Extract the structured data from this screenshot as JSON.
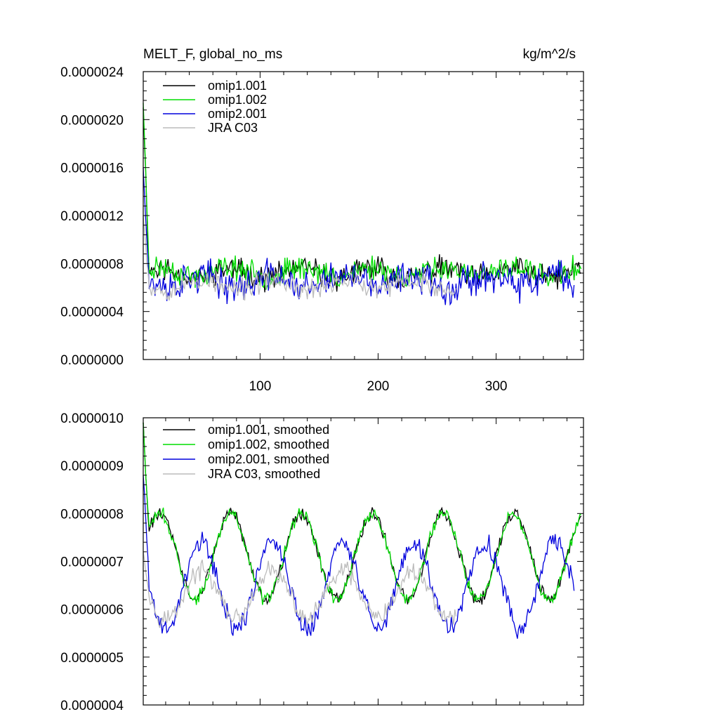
{
  "chart_data": [
    {
      "type": "line",
      "title": "MELT_F, global_no_ms",
      "units": "kg/m^2/s",
      "xlim": [
        1,
        374
      ],
      "ylim": [
        0.0,
        2.4e-06
      ],
      "xticks": [
        100,
        200,
        300
      ],
      "xtick_labels": [
        "100",
        "200",
        "300"
      ],
      "yticks": [
        0.0,
        4e-07,
        8e-07,
        1.2e-06,
        1.6e-06,
        2e-06,
        2.4e-06
      ],
      "ytick_labels": [
        "0.0000000",
        "0.0000004",
        "0.0000008",
        "0.0000012",
        "0.0000016",
        "0.0000020",
        "0.0000024"
      ],
      "legend_position": "top-left",
      "series": [
        {
          "name": "omip1.001",
          "color": "#000000",
          "n": 372,
          "mean": 7.2e-07,
          "noise": 9e-08,
          "seas": 4e-08,
          "seas_phase": 0.0,
          "spike": 2.1e-06,
          "seed": 11
        },
        {
          "name": "omip1.002",
          "color": "#00dd00",
          "n": 372,
          "mean": 7.3e-07,
          "noise": 9e-08,
          "seas": 4e-08,
          "seas_phase": 0.0,
          "spike": 2.14e-06,
          "seed": 23
        },
        {
          "name": "omip2.001",
          "color": "#0000dd",
          "n": 366,
          "mean": 6.5e-07,
          "noise": 1.2e-07,
          "seas": 5e-08,
          "seas_phase": 2.6,
          "spike": 1.6e-06,
          "seed": 37
        },
        {
          "name": "JRA C03",
          "color": "#bbbbbb",
          "n": 266,
          "mean": 6.2e-07,
          "noise": 8e-08,
          "seas": 4e-08,
          "seas_phase": 2.6,
          "spike": 1.2e-06,
          "seed": 53
        }
      ]
    },
    {
      "type": "line",
      "title": "",
      "xlim": [
        1,
        374
      ],
      "ylim": [
        4e-07,
        1e-06
      ],
      "xticks": [
        100,
        200,
        300
      ],
      "xtick_labels": [
        "",
        "",
        ""
      ],
      "yticks": [
        4e-07,
        5e-07,
        6e-07,
        7e-07,
        8e-07,
        9e-07,
        1e-06
      ],
      "ytick_labels": [
        "0.0000004",
        "0.0000005",
        "0.0000006",
        "0.0000007",
        "0.0000008",
        "0.0000009",
        "0.0000010"
      ],
      "legend_position": "top-left",
      "series": [
        {
          "name": "omip1.001, smoothed",
          "color": "#000000",
          "n": 372,
          "mean": 7.1e-07,
          "noise": 1.2e-08,
          "seas": 9e-08,
          "seas_phase": 0.0,
          "spike": 9.9e-07,
          "seed": 61
        },
        {
          "name": "omip1.002, smoothed",
          "color": "#00dd00",
          "n": 372,
          "mean": 7.1e-07,
          "noise": 1.2e-08,
          "seas": 9e-08,
          "seas_phase": 0.0,
          "spike": 9.9e-07,
          "seed": 73
        },
        {
          "name": "omip2.001, smoothed",
          "color": "#0000dd",
          "n": 366,
          "mean": 6.5e-07,
          "noise": 2e-08,
          "seas": 9e-08,
          "seas_phase": 2.6,
          "spike": 8.8e-07,
          "seed": 89
        },
        {
          "name": "JRA C03, smoothed",
          "color": "#bbbbbb",
          "n": 266,
          "mean": 6.3e-07,
          "noise": 1.8e-08,
          "seas": 5e-08,
          "seas_phase": 2.6,
          "spike": 7.2e-07,
          "seed": 97
        }
      ]
    }
  ]
}
